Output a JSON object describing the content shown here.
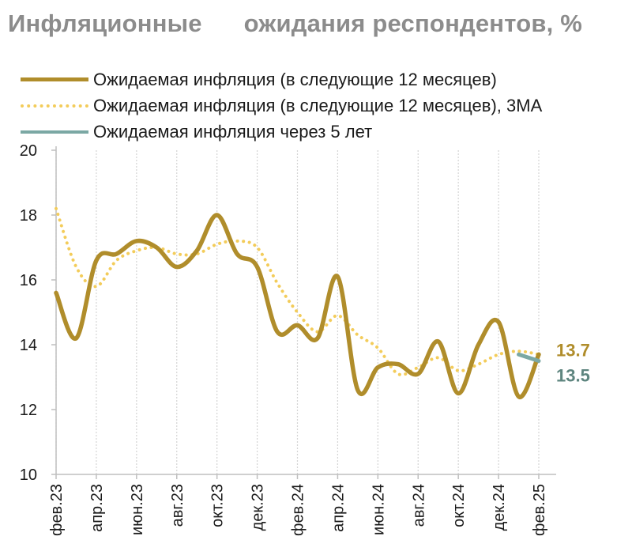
{
  "title": "Инфляционные      ожидания респондентов, %",
  "legend": [
    {
      "label": "Ожидаемая инфляция (в следующие 12 месяцев)",
      "style": "solid",
      "color": "#b08d2b"
    },
    {
      "label": "Ожидаемая инфляция (в следующие 12 месяцев), 3МА",
      "style": "dotted",
      "color": "#f3cc5a"
    },
    {
      "label": "Ожидаемая инфляция через 5 лет",
      "style": "solid",
      "color": "#7ba8a4"
    }
  ],
  "chart_data": {
    "type": "line",
    "title": "Инфляционные      ожидания респондентов, %",
    "x": [
      "фев.23",
      "мар.23",
      "апр.23",
      "май.23",
      "июн.23",
      "июл.23",
      "авг.23",
      "сен.23",
      "окт.23",
      "ноя.23",
      "дек.23",
      "янв.24",
      "фев.24",
      "мар.24",
      "апр.24",
      "май.24",
      "июн.24",
      "июл.24",
      "авг.24",
      "сен.24",
      "окт.24",
      "ноя.24",
      "дек.24",
      "янв.25",
      "фев.25"
    ],
    "x_tick_labels": [
      "фев.23",
      "апр.23",
      "июн.23",
      "авг.23",
      "окт.23",
      "дек.23",
      "фев.24",
      "апр.24",
      "июн.24",
      "авг.24",
      "окт.24",
      "дек.24",
      "фев.25"
    ],
    "ylim": [
      10,
      20
    ],
    "y_ticks": [
      10,
      12,
      14,
      16,
      18,
      20
    ],
    "grid": "vertical",
    "legend_position": "top-left",
    "series": [
      {
        "name": "Ожидаемая инфляция (в следующие 12 месяцев)",
        "color": "#b08d2b",
        "style": "solid",
        "values": [
          15.6,
          14.2,
          16.6,
          16.8,
          17.2,
          17.0,
          16.4,
          16.9,
          18.0,
          16.8,
          16.4,
          14.4,
          14.6,
          14.2,
          16.1,
          12.6,
          13.3,
          13.4,
          13.1,
          14.1,
          12.5,
          14.0,
          14.7,
          12.4,
          13.7
        ]
      },
      {
        "name": "Ожидаемая инфляция (в следующие 12 месяцев), 3МА",
        "color": "#f3cc5a",
        "style": "dotted",
        "values": [
          18.2,
          16.4,
          15.8,
          16.6,
          16.9,
          17.0,
          16.8,
          16.8,
          17.1,
          17.2,
          17.0,
          15.9,
          15.0,
          14.4,
          14.9,
          14.3,
          13.9,
          13.1,
          13.3,
          13.6,
          13.2,
          13.4,
          13.7,
          13.8,
          13.7
        ]
      },
      {
        "name": "Ожидаемая инфляция через 5 лет",
        "color": "#7ba8a4",
        "style": "solid",
        "x": [
          "янв.25",
          "фев.25"
        ],
        "values": [
          13.7,
          13.5
        ]
      }
    ],
    "end_labels": [
      {
        "text": "13.7",
        "color": "#b08d2b"
      },
      {
        "text": "13.5",
        "color": "#5e857f"
      }
    ]
  }
}
